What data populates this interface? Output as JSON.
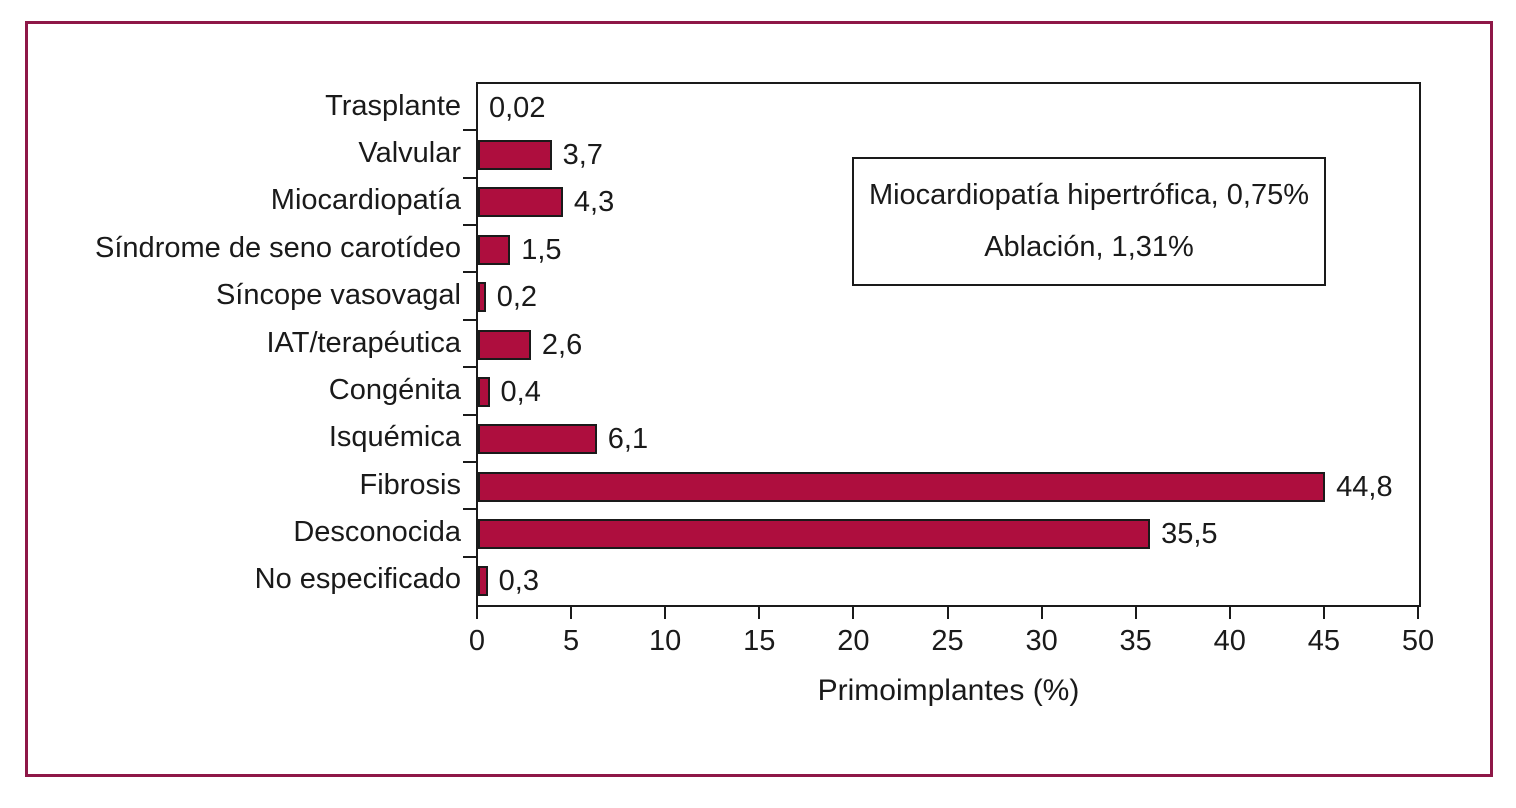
{
  "chart_data": {
    "type": "bar",
    "orientation": "horizontal",
    "categories": [
      "Trasplante",
      "Valvular",
      "Miocardiopatía",
      "Síndrome de seno carotídeo",
      "Síncope vasovagal",
      "IAT/terapéutica",
      "Congénita",
      "Isquémica",
      "Fibrosis",
      "Desconocida",
      "No especificado"
    ],
    "values": [
      0.02,
      3.7,
      4.3,
      1.5,
      0.2,
      2.6,
      0.4,
      6.1,
      44.8,
      35.5,
      0.3
    ],
    "value_labels": [
      "0,02",
      "3,7",
      "4,3",
      "1,5",
      "0,2",
      "2,6",
      "0,4",
      "6,1",
      "44,8",
      "35,5",
      "0,3"
    ],
    "xlabel": "Primoimplantes (%)",
    "xlim": [
      0,
      50
    ],
    "x_ticks": [
      0,
      5,
      10,
      15,
      20,
      25,
      30,
      35,
      40,
      45,
      50
    ],
    "x_tick_labels": [
      "0",
      "5",
      "10",
      "15",
      "20",
      "25",
      "30",
      "35",
      "40",
      "45",
      "50"
    ],
    "grid": false,
    "legend": "none",
    "annotation_box": {
      "lines": [
        "Miocardiopatía hipertrófica, 0,75%",
        "Ablación, 1,31%"
      ]
    },
    "colors": {
      "bar_fill": "#ae0e3e",
      "bar_border": "#1a1a1a",
      "plot_border": "#1a1a1a",
      "frame_border": "#8e1747",
      "text": "#1a1a1a"
    }
  }
}
